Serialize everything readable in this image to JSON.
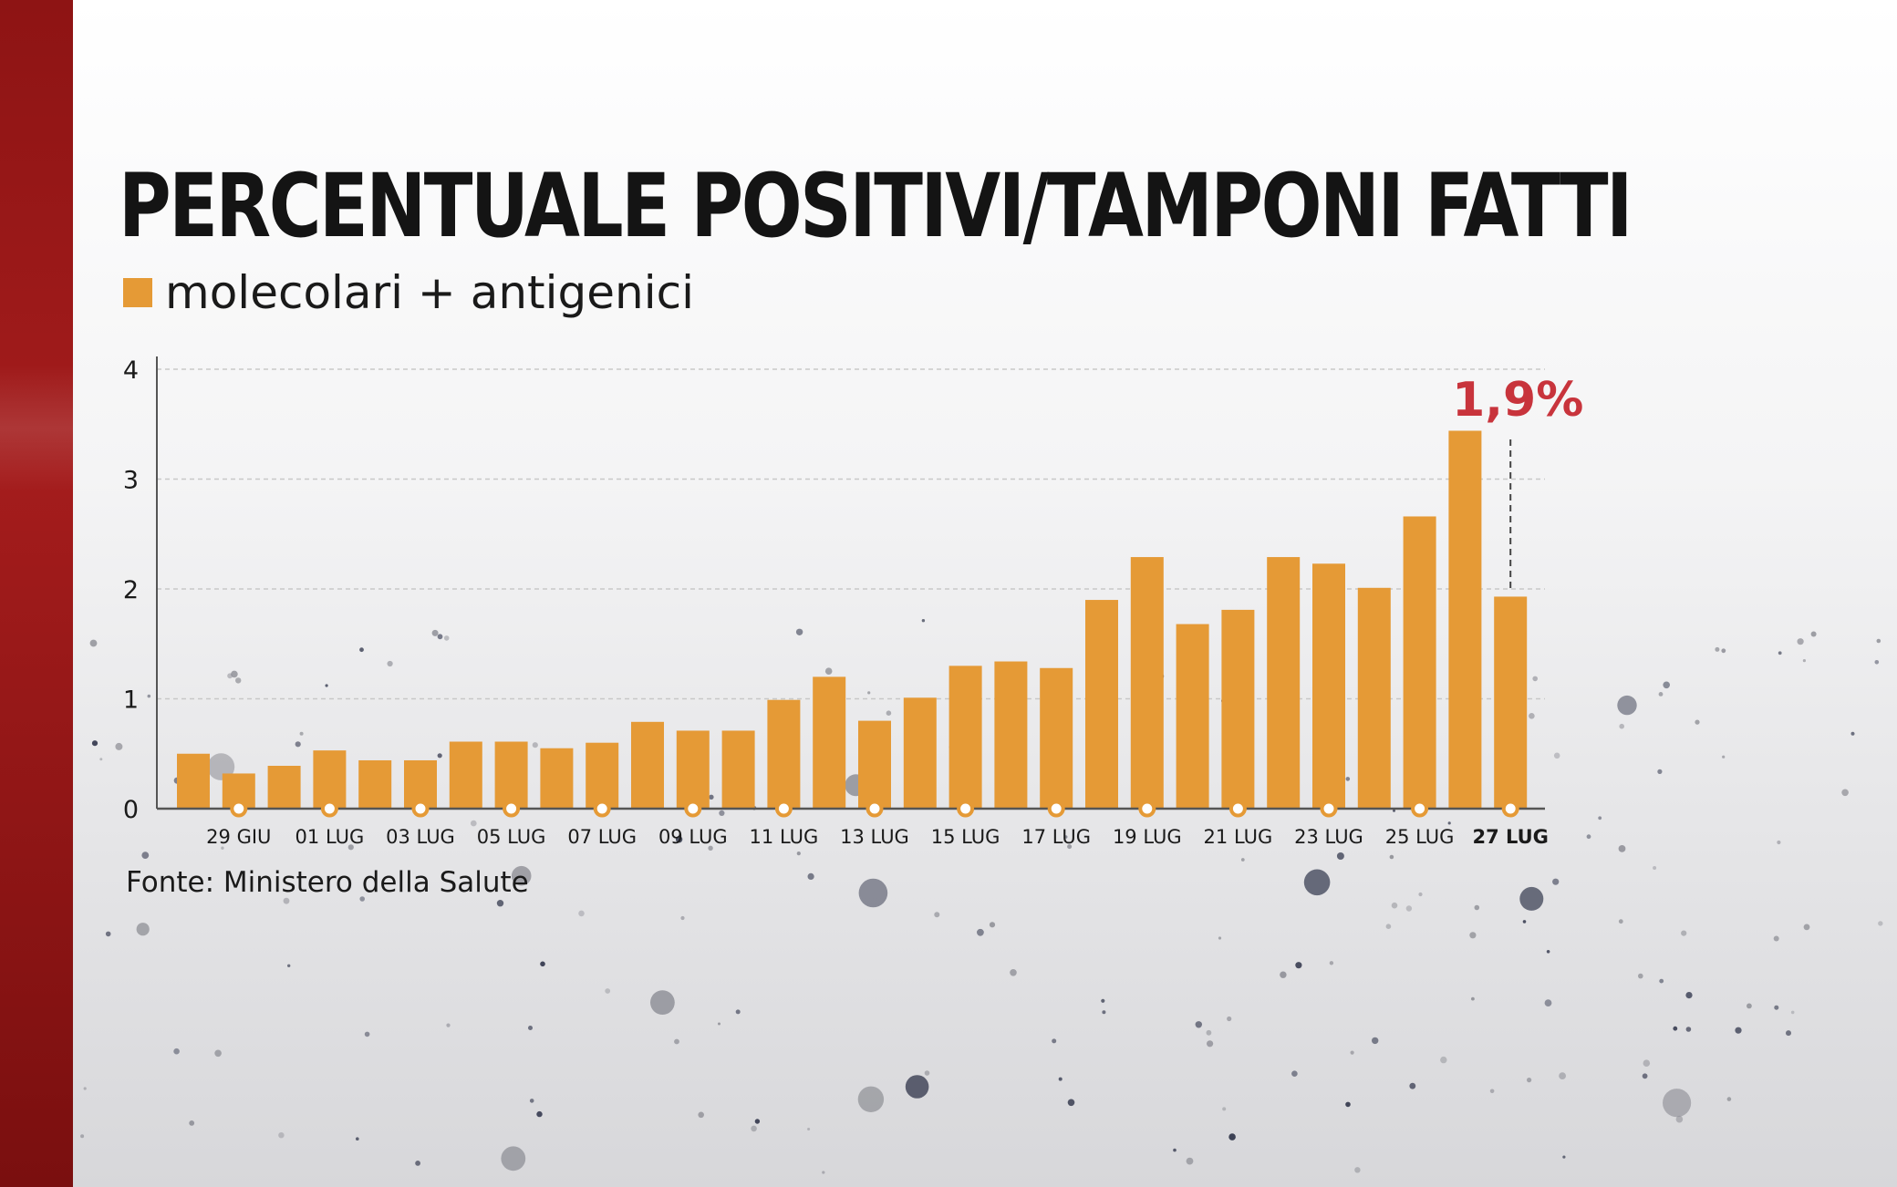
{
  "title": "PERCENTUALE POSITIVI/TAMPONI FATTI",
  "legend": {
    "label": "molecolari + antigenici",
    "color": "#e59a36"
  },
  "source": "Fonte: Ministero della Salute",
  "colors": {
    "bar": "#e59a36",
    "annotation": "#c8343c",
    "axis": "#555555",
    "grid": "#c8c8c8",
    "side_band": "#9a1818"
  },
  "chart_data": {
    "type": "bar",
    "series": [
      {
        "name": "molecolari + antigenici",
        "values": [
          0.5,
          0.32,
          0.39,
          0.53,
          0.44,
          0.44,
          0.61,
          0.61,
          0.55,
          0.6,
          0.79,
          0.71,
          0.71,
          0.99,
          1.2,
          0.8,
          1.01,
          1.3,
          1.34,
          1.28,
          1.9,
          2.29,
          1.68,
          1.81,
          2.29,
          2.23,
          2.01,
          2.66,
          3.44,
          1.93
        ]
      }
    ],
    "x_tick_labels": [
      {
        "index": 1,
        "label": "29 GIU"
      },
      {
        "index": 3,
        "label": "01 LUG"
      },
      {
        "index": 5,
        "label": "03 LUG"
      },
      {
        "index": 7,
        "label": "05 LUG"
      },
      {
        "index": 9,
        "label": "07 LUG"
      },
      {
        "index": 11,
        "label": "09 LUG"
      },
      {
        "index": 13,
        "label": "11 LUG"
      },
      {
        "index": 15,
        "label": "13 LUG"
      },
      {
        "index": 17,
        "label": "15 LUG"
      },
      {
        "index": 19,
        "label": "17 LUG"
      },
      {
        "index": 21,
        "label": "19 LUG"
      },
      {
        "index": 23,
        "label": "21 LUG"
      },
      {
        "index": 25,
        "label": "23 LUG"
      },
      {
        "index": 27,
        "label": "25 LUG"
      },
      {
        "index": 29,
        "label": "27 LUG",
        "bold": true
      }
    ],
    "y_ticks": [
      0,
      1,
      2,
      3,
      4
    ],
    "ylim": [
      0,
      4
    ],
    "grid": true,
    "annotation": {
      "index": 29,
      "text": "1,9%"
    }
  }
}
